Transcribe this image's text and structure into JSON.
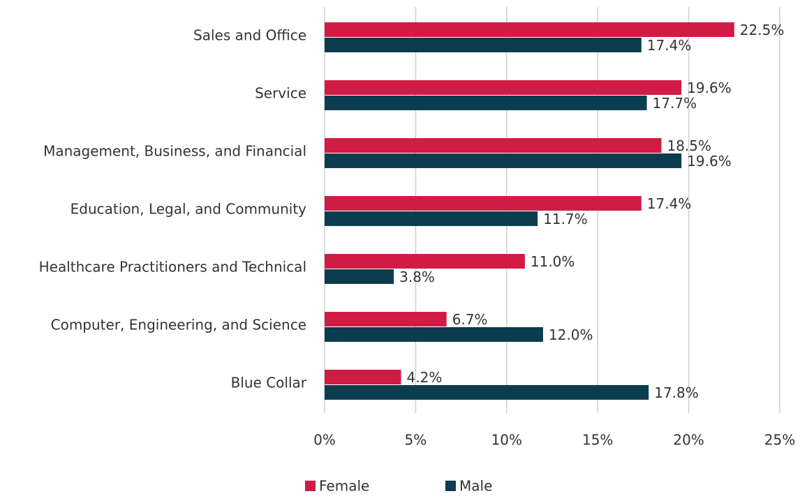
{
  "chart_data": {
    "type": "bar",
    "orientation": "horizontal",
    "categories": [
      "Sales and Office",
      "Service",
      "Management, Business, and Financial",
      "Education, Legal, and Community",
      "Healthcare Practitioners and Technical",
      "Computer, Engineering, and Science",
      "Blue Collar"
    ],
    "series": [
      {
        "name": "Female",
        "color": "#d01c45",
        "values": [
          22.5,
          19.6,
          18.5,
          17.4,
          11.0,
          6.7,
          4.2
        ],
        "value_labels": [
          "22.5%",
          "19.6%",
          "18.5%",
          "17.4%",
          "11.0%",
          "6.7%",
          "4.2%"
        ]
      },
      {
        "name": "Male",
        "color": "#0b3d4f",
        "values": [
          17.4,
          17.7,
          19.6,
          11.7,
          3.8,
          12.0,
          17.8
        ],
        "value_labels": [
          "17.4%",
          "17.7%",
          "19.6%",
          "11.7%",
          "3.8%",
          "12.0%",
          "17.8%"
        ]
      }
    ],
    "xlim": [
      0,
      25
    ],
    "xticks": [
      {
        "value": 0,
        "label": "0%"
      },
      {
        "value": 5,
        "label": "5%"
      },
      {
        "value": 10,
        "label": "10%"
      },
      {
        "value": 15,
        "label": "15%"
      },
      {
        "value": 20,
        "label": "20%"
      },
      {
        "value": 25,
        "label": "25%"
      }
    ],
    "grid": true,
    "legend": "bottom"
  }
}
